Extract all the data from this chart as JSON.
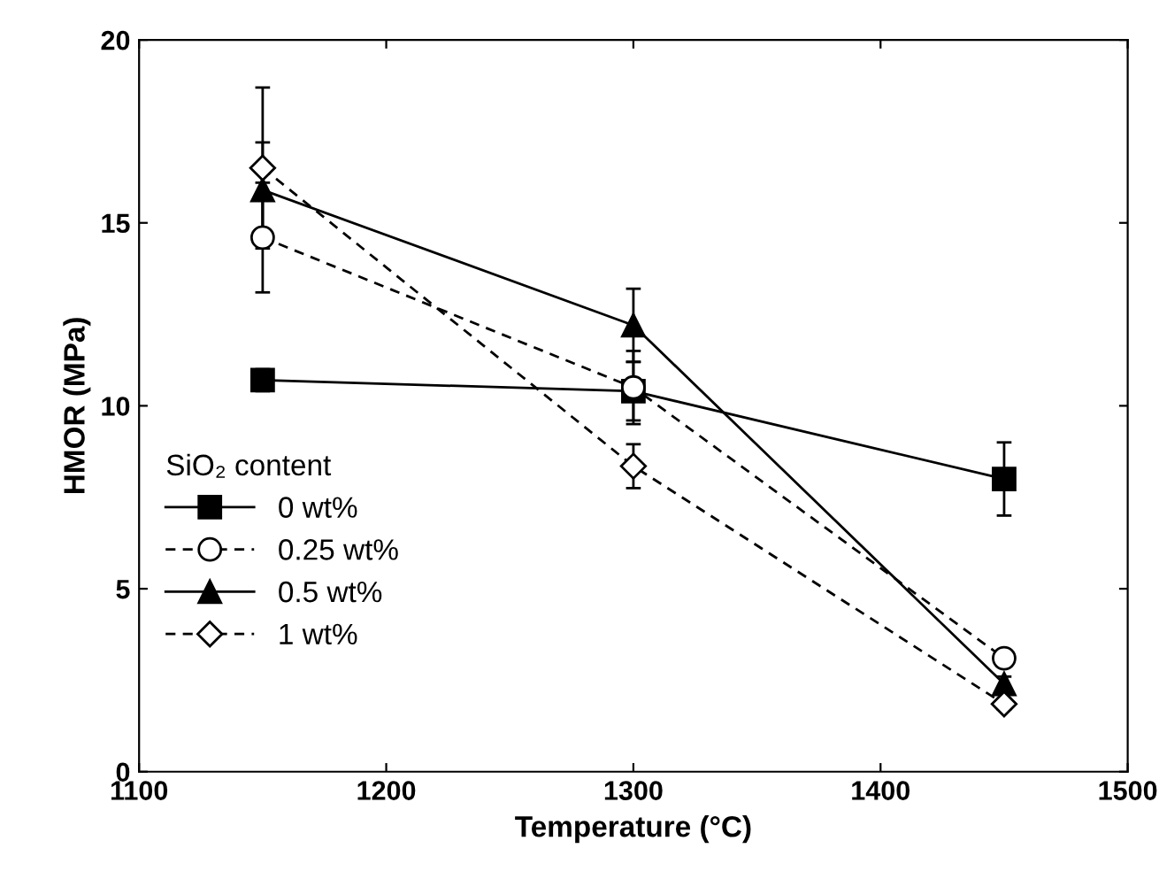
{
  "chart_data": {
    "type": "line",
    "xlabel": "Temperature (°C)",
    "ylabel": "HMOR (MPa)",
    "legend_title": "SiO₂ content",
    "legend": "left",
    "grid": false,
    "xlim": [
      1100,
      1500
    ],
    "xticks": [
      1100,
      1200,
      1300,
      1400,
      1500
    ],
    "ylim": [
      0,
      20
    ],
    "yticks": [
      0,
      5,
      10,
      15,
      20
    ],
    "series": [
      {
        "name": "0 wt%",
        "color": "#000000",
        "marker": "square",
        "line_style": "solid",
        "x": [
          1150,
          1300,
          1450
        ],
        "values": [
          10.7,
          10.4,
          8.0
        ],
        "errors": [
          0.3,
          0.8,
          1.0
        ]
      },
      {
        "name": "0.25 wt%",
        "color": "#000000",
        "marker": "circle",
        "line_style": "dashed",
        "x": [
          1150,
          1300,
          1450
        ],
        "values": [
          14.6,
          10.5,
          3.1
        ],
        "errors": [
          1.5,
          1.0,
          0.2
        ]
      },
      {
        "name": "0.5 wt%",
        "color": "#000000",
        "marker": "triangle",
        "line_style": "solid",
        "x": [
          1150,
          1300,
          1450
        ],
        "values": [
          15.9,
          12.2,
          2.4
        ],
        "errors": [
          1.3,
          1.0,
          0.2
        ]
      },
      {
        "name": "1 wt%",
        "color": "#000000",
        "marker": "diamond",
        "line_style": "dashed",
        "x": [
          1150,
          1300,
          1450
        ],
        "values": [
          16.5,
          8.35,
          1.85
        ],
        "errors": [
          2.2,
          0.6,
          0.15
        ]
      }
    ]
  }
}
